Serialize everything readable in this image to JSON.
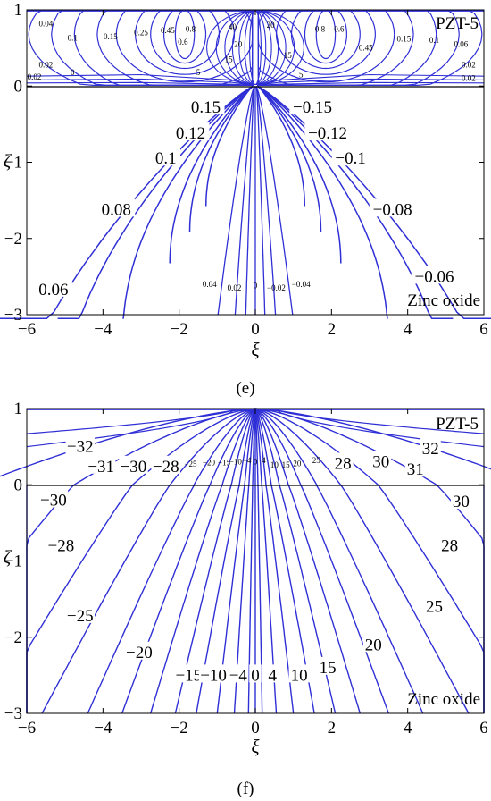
{
  "chart_data": [
    {
      "panel": "e",
      "type": "contour",
      "caption": "(e)",
      "xlabel": "ξ",
      "ylabel": "ζ",
      "xlim": [
        -6,
        6
      ],
      "ylim": [
        -3,
        1
      ],
      "xticks": [
        "−6",
        "−4",
        "−2",
        "0",
        "2",
        "4",
        "6"
      ],
      "yticks": [
        "1",
        "0",
        "−1",
        "−2",
        "−3"
      ],
      "grid": false,
      "regions": [
        {
          "name": "PZT-5",
          "y_range": [
            0,
            1
          ]
        },
        {
          "name": "Zinc oxide",
          "y_range": [
            -3,
            0
          ]
        }
      ],
      "levels_zinc_oxide": [
        {
          "label": "0.15",
          "x": -1.3,
          "y": -0.28
        },
        {
          "label": "0.12",
          "x": -1.7,
          "y": -0.62
        },
        {
          "label": "0.1",
          "x": -2.35,
          "y": -0.95
        },
        {
          "label": "0.08",
          "x": -3.65,
          "y": -1.62
        },
        {
          "label": "0.06",
          "x": -5.3,
          "y": -2.67
        },
        {
          "label": "0.04",
          "x": -1.2,
          "y": -2.6
        },
        {
          "label": "0.02",
          "x": -0.55,
          "y": -2.65
        },
        {
          "label": "0",
          "x": 0,
          "y": -2.62
        },
        {
          "label": "−0.02",
          "x": 0.55,
          "y": -2.65
        },
        {
          "label": "−0.04",
          "x": 1.2,
          "y": -2.6
        },
        {
          "label": "−0.06",
          "x": 4.7,
          "y": -2.5
        },
        {
          "label": "−0.08",
          "x": 3.6,
          "y": -1.62
        },
        {
          "label": "−0.1",
          "x": 2.5,
          "y": -0.95
        },
        {
          "label": "−0.12",
          "x": 1.9,
          "y": -0.62
        },
        {
          "label": "−0.15",
          "x": 1.5,
          "y": -0.28
        }
      ],
      "levels_pzt5": [
        {
          "label": "0.04",
          "x": -5.5,
          "y": 0.82
        },
        {
          "label": "0.1",
          "x": -4.8,
          "y": 0.63
        },
        {
          "label": "0.15",
          "x": -3.8,
          "y": 0.65
        },
        {
          "label": "0.25",
          "x": -3.0,
          "y": 0.7
        },
        {
          "label": "0.45",
          "x": -2.3,
          "y": 0.73
        },
        {
          "label": "0.6",
          "x": -1.9,
          "y": 0.58
        },
        {
          "label": "0.8",
          "x": -1.7,
          "y": 0.75
        },
        {
          "label": "0.02",
          "x": -5.5,
          "y": 0.28
        },
        {
          "label": "0.02",
          "x": -5.8,
          "y": 0.12
        },
        {
          "label": "0",
          "x": -4.8,
          "y": 0.18
        },
        {
          "label": "40",
          "x": -0.6,
          "y": 0.78
        },
        {
          "label": "20",
          "x": -0.45,
          "y": 0.55
        },
        {
          "label": "15",
          "x": -0.7,
          "y": 0.35
        },
        {
          "label": "5",
          "x": -1.5,
          "y": 0.18
        },
        {
          "label": "5",
          "x": 1.2,
          "y": 0.15
        },
        {
          "label": "20",
          "x": 0.4,
          "y": 0.8
        },
        {
          "label": "15",
          "x": 0.85,
          "y": 0.4
        },
        {
          "label": "0.8",
          "x": 1.7,
          "y": 0.75
        },
        {
          "label": "0.6",
          "x": 2.2,
          "y": 0.75
        },
        {
          "label": "0.45",
          "x": 2.9,
          "y": 0.5
        },
        {
          "label": "0.15",
          "x": 3.9,
          "y": 0.62
        },
        {
          "label": "0.1",
          "x": 4.7,
          "y": 0.6
        },
        {
          "label": "0.06",
          "x": 5.4,
          "y": 0.55
        },
        {
          "label": "0.02",
          "x": 5.6,
          "y": 0.28
        },
        {
          "label": "0.02",
          "x": 5.6,
          "y": 0.1
        }
      ]
    },
    {
      "panel": "f",
      "type": "contour",
      "caption": "(f)",
      "xlabel": "ξ",
      "ylabel": "ζ",
      "xlim": [
        -6,
        6
      ],
      "ylim": [
        -3,
        1
      ],
      "xticks": [
        "−6",
        "−4",
        "−2",
        "0",
        "2",
        "4",
        "6"
      ],
      "yticks": [
        "1",
        "0",
        "−1",
        "−2",
        "−3"
      ],
      "grid": false,
      "regions": [
        {
          "name": "PZT-5",
          "y_range": [
            0,
            1
          ]
        },
        {
          "name": "Zinc oxide",
          "y_range": [
            -3,
            0
          ]
        }
      ],
      "levels_pzt5": [
        {
          "label": "−32",
          "x": -4.6,
          "y": 0.5
        },
        {
          "label": "−31",
          "x": -4.05,
          "y": 0.24
        },
        {
          "label": "−30",
          "x": -3.2,
          "y": 0.24
        },
        {
          "label": "−28",
          "x": -2.35,
          "y": 0.24
        },
        {
          "label": "−25",
          "x": -1.7,
          "y": 0.27
        },
        {
          "label": "−20",
          "x": -1.22,
          "y": 0.29
        },
        {
          "label": "−15",
          "x": -0.82,
          "y": 0.29
        },
        {
          "label": "−10",
          "x": -0.52,
          "y": 0.3
        },
        {
          "label": "−4",
          "x": -0.22,
          "y": 0.32
        },
        {
          "label": "0",
          "x": 0,
          "y": 0.3
        },
        {
          "label": "4",
          "x": 0.22,
          "y": 0.32
        },
        {
          "label": "10",
          "x": 0.5,
          "y": 0.26
        },
        {
          "label": "15",
          "x": 0.8,
          "y": 0.26
        },
        {
          "label": "20",
          "x": 1.1,
          "y": 0.28
        },
        {
          "label": "25",
          "x": 1.6,
          "y": 0.32
        },
        {
          "label": "28",
          "x": 2.3,
          "y": 0.28
        },
        {
          "label": "30",
          "x": 3.3,
          "y": 0.3
        },
        {
          "label": "31",
          "x": 4.2,
          "y": 0.2
        },
        {
          "label": "32",
          "x": 4.6,
          "y": 0.47
        }
      ],
      "levels_zinc_oxide": [
        {
          "label": "−30",
          "x": -5.3,
          "y": -0.2
        },
        {
          "label": "−28",
          "x": -5.1,
          "y": -0.8
        },
        {
          "label": "−25",
          "x": -4.6,
          "y": -1.72
        },
        {
          "label": "−20",
          "x": -3.05,
          "y": -2.2
        },
        {
          "label": "−15",
          "x": -1.75,
          "y": -2.5
        },
        {
          "label": "−10",
          "x": -1.1,
          "y": -2.5
        },
        {
          "label": "−4",
          "x": -0.45,
          "y": -2.5
        },
        {
          "label": "0",
          "x": 0,
          "y": -2.5
        },
        {
          "label": "4",
          "x": 0.45,
          "y": -2.5
        },
        {
          "label": "10",
          "x": 1.15,
          "y": -2.5
        },
        {
          "label": "15",
          "x": 1.9,
          "y": -2.4
        },
        {
          "label": "20",
          "x": 3.1,
          "y": -2.1
        },
        {
          "label": "25",
          "x": 4.7,
          "y": -1.6
        },
        {
          "label": "28",
          "x": 5.1,
          "y": -0.8
        },
        {
          "label": "30",
          "x": 5.4,
          "y": -0.22
        }
      ]
    }
  ],
  "colors": {
    "contour": "#2f2fd6",
    "axis": "#000000"
  }
}
